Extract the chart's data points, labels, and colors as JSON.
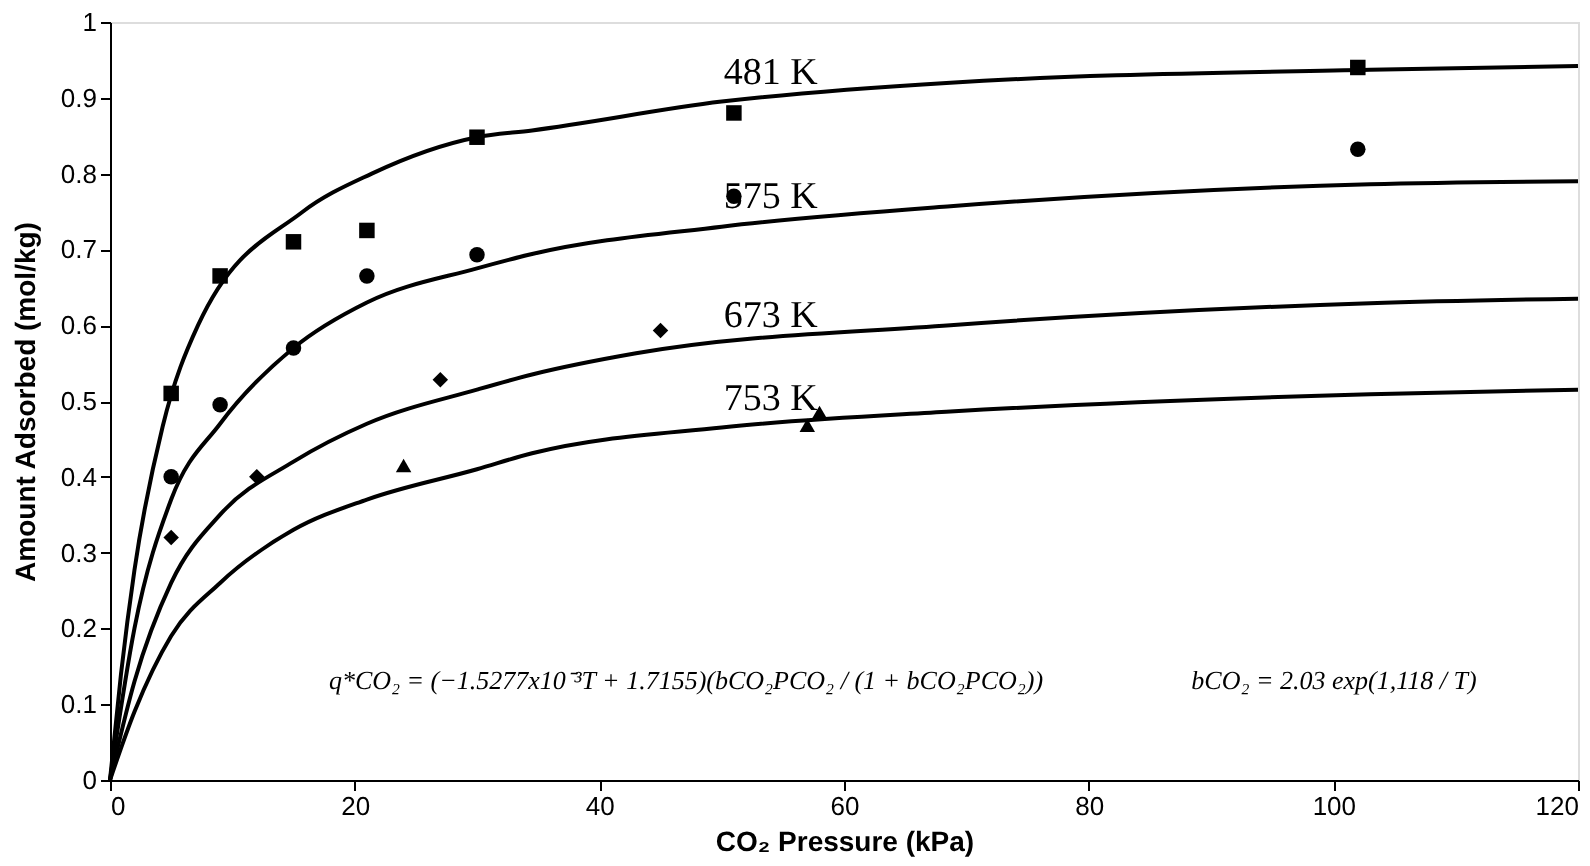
{
  "chart_data": {
    "type": "line",
    "xlabel": "CO₂ Pressure (kPa)",
    "ylabel": "Amount Adsorbed (mol/kg)",
    "xlim": [
      0,
      120
    ],
    "xticks": [
      0,
      20,
      40,
      60,
      80,
      100,
      120
    ],
    "ylim": [
      0,
      1
    ],
    "yticks": [
      0,
      0.1,
      0.2,
      0.3,
      0.4,
      0.5,
      0.6,
      0.7,
      0.8,
      0.9,
      1
    ],
    "grid": false,
    "series": [
      {
        "name": "481 K",
        "color": "#000000",
        "marker": "none",
        "line_style": "solid",
        "x": [
          0,
          0.9,
          2,
          4.3,
          7.2,
          15.7,
          21.4,
          30,
          34.5,
          50,
          68.7,
          103,
          120
        ],
        "values": [
          0,
          0.14,
          0.277,
          0.466,
          0.6,
          0.749,
          0.8,
          0.848,
          0.857,
          0.895,
          0.92,
          0.937,
          0.942
        ]
      },
      {
        "name": "575 K",
        "color": "#000000",
        "marker": "none",
        "line_style": "solid",
        "x": [
          0,
          2,
          5,
          9,
          15,
          21,
          30,
          34.5,
          50,
          68.7,
          103,
          120
        ],
        "values": [
          0,
          0.2,
          0.37,
          0.47,
          0.57,
          0.63,
          0.675,
          0.694,
          0.73,
          0.757,
          0.786,
          0.79
        ]
      },
      {
        "name": "673 K",
        "color": "#000000",
        "marker": "none",
        "line_style": "solid",
        "x": [
          0,
          2,
          5,
          9,
          15,
          21,
          30,
          34.5,
          43,
          68.7,
          103,
          120
        ],
        "values": [
          0,
          0.13,
          0.26,
          0.35,
          0.42,
          0.47,
          0.515,
          0.535,
          0.563,
          0.6,
          0.629,
          0.635
        ]
      },
      {
        "name": "753 K",
        "color": "#000000",
        "marker": "none",
        "line_style": "solid",
        "x": [
          0,
          2,
          5,
          9,
          15,
          21,
          30,
          34.5,
          50,
          68.7,
          103,
          120
        ],
        "values": [
          0,
          0.09,
          0.19,
          0.26,
          0.33,
          0.37,
          0.41,
          0.431,
          0.465,
          0.486,
          0.509,
          0.515
        ]
      },
      {
        "type": "scatter",
        "color": "#000000",
        "marker": "square",
        "x": [
          5,
          9,
          15,
          21,
          30,
          51,
          102
        ],
        "values": [
          0.51,
          0.665,
          0.71,
          0.725,
          0.848,
          0.88,
          0.94
        ]
      },
      {
        "type": "scatter",
        "color": "#000000",
        "marker": "circle",
        "x": [
          5,
          9,
          15,
          21,
          30,
          51,
          102
        ],
        "values": [
          0.4,
          0.495,
          0.57,
          0.665,
          0.693,
          0.77,
          0.832
        ]
      },
      {
        "type": "scatter",
        "color": "#000000",
        "marker": "diamond",
        "x": [
          5,
          12,
          27,
          45
        ],
        "values": [
          0.32,
          0.4,
          0.528,
          0.593
        ]
      },
      {
        "type": "scatter",
        "color": "#000000",
        "marker": "triangle",
        "x": [
          24,
          57,
          58
        ],
        "values": [
          0.415,
          0.468,
          0.485
        ]
      }
    ],
    "annotations": [
      "q*CO₂ = (−1.5277x10⁻³T + 1.7155)(bCO₂PCO₂ / (1 + bCO₂PCO₂))",
      "bCO₂ = 2.03 exp(1,118 / T)"
    ]
  }
}
